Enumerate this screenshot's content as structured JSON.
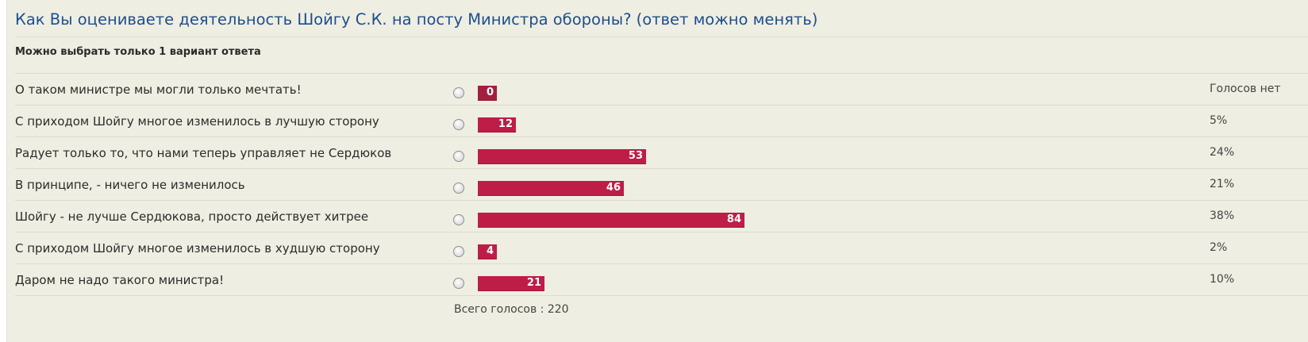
{
  "poll": {
    "question": "Как Вы оцениваете деятельность Шойгу С.К. на посту Министра обороны? (ответ можно менять)",
    "instruction": "Можно выбрать только 1 вариант ответа",
    "total_label": "Всего голосов : 220",
    "bar_color": "#be1d48",
    "options": [
      {
        "label": "О таком министре мы могли только мечтать!",
        "votes": 0,
        "votes_text": "0",
        "result": "Голосов нет"
      },
      {
        "label": "С приходом Шойгу многое изменилось в лучшую сторону",
        "votes": 12,
        "votes_text": "12",
        "result": "5%"
      },
      {
        "label": "Радует только то, что нами теперь управляет не Сердюков",
        "votes": 53,
        "votes_text": "53",
        "result": "24%"
      },
      {
        "label": "В принципе, - ничего не изменилось",
        "votes": 46,
        "votes_text": "46",
        "result": "21%"
      },
      {
        "label": "Шойгу - не лучше Сердюкова, просто действует хитрее",
        "votes": 84,
        "votes_text": "84",
        "result": "38%"
      },
      {
        "label": "С приходом Шойгу многое изменилось в худшую сторону",
        "votes": 4,
        "votes_text": "4",
        "result": "2%"
      },
      {
        "label": "Даром не надо такого министра!",
        "votes": 21,
        "votes_text": "21",
        "result": "10%"
      }
    ]
  }
}
